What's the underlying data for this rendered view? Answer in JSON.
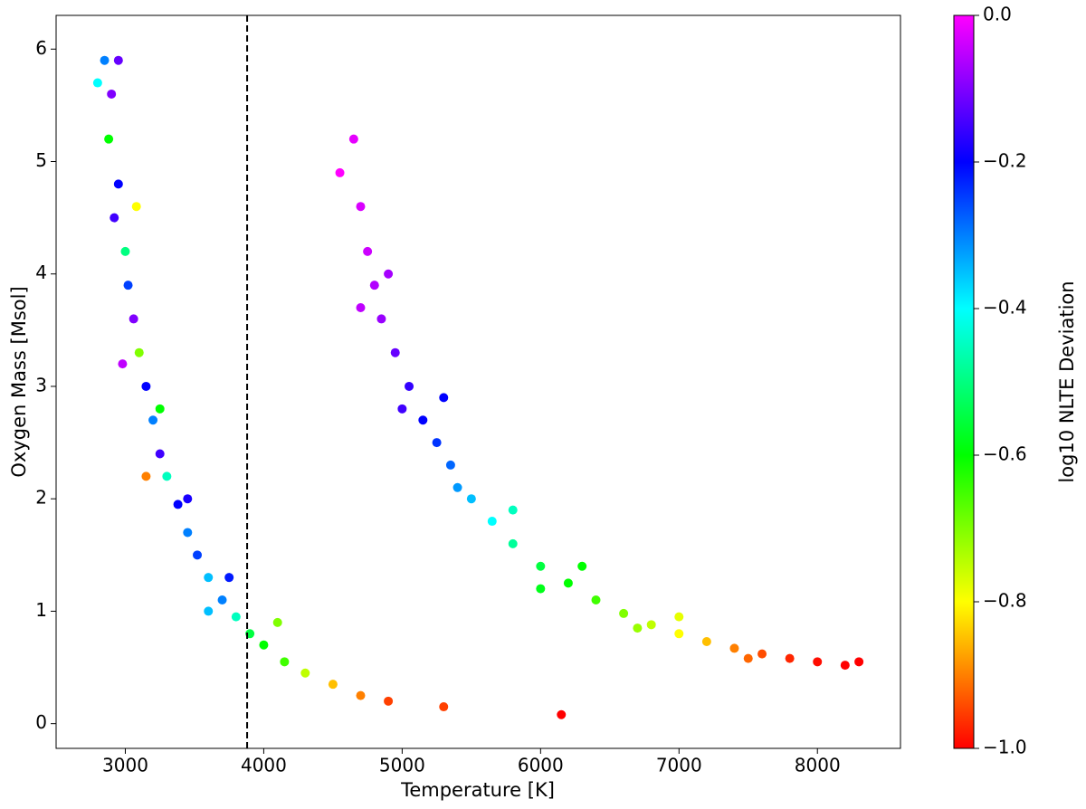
{
  "chart_data": {
    "type": "scatter",
    "x_label": "Temperature [K]",
    "y_label": "Oxygen Mass [Msol]",
    "colorbar_label": "log10 NLTE Deviation",
    "xlim": [
      2500,
      8600
    ],
    "ylim": [
      -0.22,
      6.3
    ],
    "xticks": [
      3000,
      4000,
      5000,
      6000,
      7000,
      8000
    ],
    "yticks": [
      0,
      1,
      2,
      3,
      4,
      5,
      6
    ],
    "clim": [
      -1,
      0
    ],
    "cticks": [
      {
        "value": -1,
        "label": "−1.0"
      },
      {
        "value": -0.8,
        "label": "−0.8"
      },
      {
        "value": -0.6,
        "label": "−0.6"
      },
      {
        "value": -0.4,
        "label": "−0.4"
      },
      {
        "value": -0.2,
        "label": "−0.2"
      },
      {
        "value": 0,
        "label": "0.0"
      }
    ],
    "colormap": "gist_rainbow",
    "vline": 3880,
    "x": [
      2850,
      2900,
      2880,
      2950,
      2920,
      3000,
      3020,
      3060,
      3100,
      3150,
      3200,
      3250,
      3300,
      3380,
      3450,
      3520,
      3600,
      3700,
      3800,
      3900,
      4000,
      4150,
      4300,
      4500,
      4700,
      4900,
      5300,
      6150,
      2800,
      2950,
      3080,
      2980,
      3250,
      3150,
      3450,
      3600,
      3750,
      4100,
      4650,
      4700,
      4750,
      4800,
      4850,
      4950,
      5050,
      5150,
      5250,
      5350,
      5500,
      5650,
      5800,
      6000,
      6200,
      6400,
      6600,
      6800,
      7000,
      7200,
      7400,
      7600,
      7800,
      8000,
      8200,
      4550,
      4700,
      4900,
      5000,
      5300,
      5400,
      5800,
      6000,
      6300,
      6700,
      7000,
      7500,
      8300
    ],
    "y": [
      5.9,
      5.6,
      5.2,
      4.8,
      4.5,
      4.2,
      3.9,
      3.6,
      3.3,
      3.0,
      2.7,
      2.4,
      2.2,
      1.95,
      1.7,
      1.5,
      1.3,
      1.1,
      0.95,
      0.8,
      0.7,
      0.55,
      0.45,
      0.35,
      0.25,
      0.2,
      0.15,
      0.08,
      5.7,
      5.9,
      4.6,
      3.2,
      2.8,
      2.2,
      2.0,
      1.0,
      1.3,
      0.9,
      5.2,
      4.6,
      4.2,
      3.9,
      3.6,
      3.3,
      3.0,
      2.7,
      2.5,
      2.3,
      2.0,
      1.8,
      1.6,
      1.4,
      1.25,
      1.1,
      0.98,
      0.88,
      0.8,
      0.73,
      0.67,
      0.62,
      0.58,
      0.55,
      0.52,
      4.9,
      3.7,
      4.0,
      2.8,
      2.9,
      2.1,
      1.9,
      1.2,
      1.4,
      0.85,
      0.95,
      0.58,
      0.55
    ],
    "c": [
      -0.3,
      -0.1,
      -0.6,
      -0.2,
      -0.15,
      -0.5,
      -0.25,
      -0.1,
      -0.7,
      -0.2,
      -0.3,
      -0.15,
      -0.45,
      -0.2,
      -0.3,
      -0.25,
      -0.35,
      -0.3,
      -0.45,
      -0.55,
      -0.6,
      -0.65,
      -0.75,
      -0.85,
      -0.9,
      -0.95,
      -0.95,
      -1,
      -0.4,
      -0.12,
      -0.8,
      -0.05,
      -0.6,
      -0.9,
      -0.18,
      -0.35,
      -0.22,
      -0.7,
      -0.02,
      -0.03,
      -0.04,
      -0.06,
      -0.08,
      -0.12,
      -0.16,
      -0.2,
      -0.24,
      -0.28,
      -0.35,
      -0.4,
      -0.48,
      -0.55,
      -0.6,
      -0.65,
      -0.7,
      -0.75,
      -0.8,
      -0.85,
      -0.9,
      -0.94,
      -0.97,
      -0.99,
      -1,
      0,
      -0.05,
      -0.07,
      -0.15,
      -0.2,
      -0.32,
      -0.45,
      -0.58,
      -0.6,
      -0.72,
      -0.78,
      -0.92,
      -1
    ]
  }
}
